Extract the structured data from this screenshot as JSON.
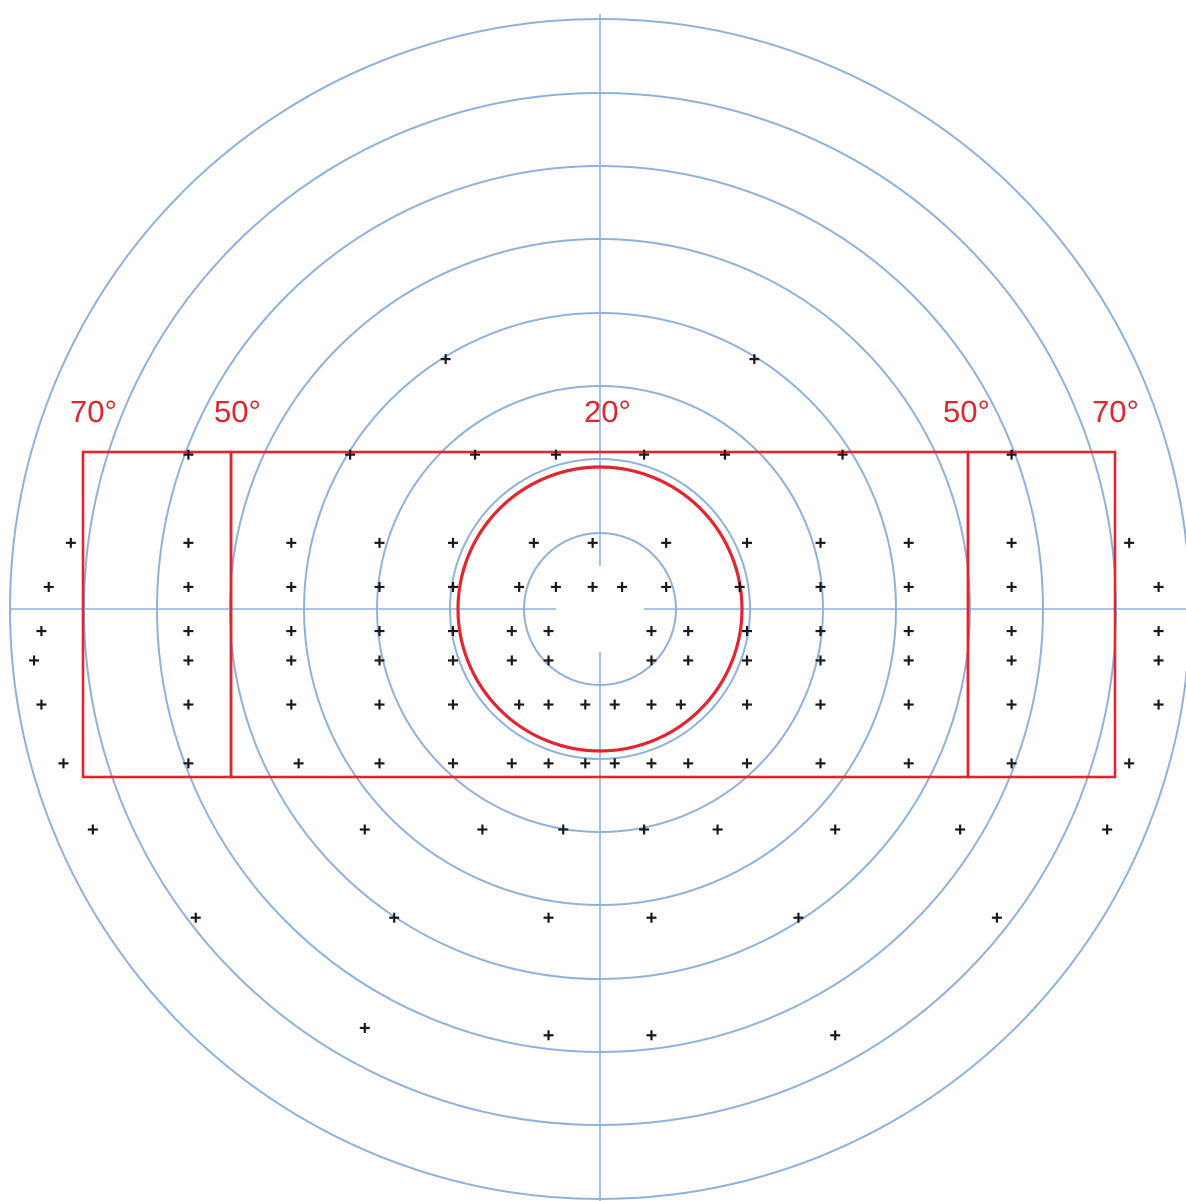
{
  "diagram": {
    "ring_step_degrees": 10,
    "ring_count": 8,
    "colors": {
      "grid": "#8fb2dc",
      "zones": "#e2252e",
      "points": "#1a1a1a"
    },
    "labels": [
      {
        "id": "left-outer",
        "text": "70°"
      },
      {
        "id": "left-inner",
        "text": "50°"
      },
      {
        "id": "center",
        "text": "20°"
      },
      {
        "id": "right-inner",
        "text": "50°"
      },
      {
        "id": "right-outer",
        "text": "70°"
      }
    ],
    "zones": {
      "central_circle_radius_deg": 20,
      "inner_box_half_width_deg": 50,
      "outer_box_half_width_deg": 70
    },
    "test_points": [
      [
        -21,
        34
      ],
      [
        21,
        34
      ],
      [
        -56,
        21
      ],
      [
        -34,
        21
      ],
      [
        -17,
        21
      ],
      [
        -6,
        21
      ],
      [
        6,
        21
      ],
      [
        17,
        21
      ],
      [
        33,
        21
      ],
      [
        56,
        21
      ],
      [
        -72,
        9
      ],
      [
        -56,
        9
      ],
      [
        -42,
        9
      ],
      [
        -30,
        9
      ],
      [
        -20,
        9
      ],
      [
        -9,
        9
      ],
      [
        -1,
        9
      ],
      [
        9,
        9
      ],
      [
        20,
        9
      ],
      [
        30,
        9
      ],
      [
        42,
        9
      ],
      [
        56,
        9
      ],
      [
        72,
        9
      ],
      [
        -75,
        3
      ],
      [
        -56,
        3
      ],
      [
        -42,
        3
      ],
      [
        -30,
        3
      ],
      [
        -20,
        3
      ],
      [
        -11,
        3
      ],
      [
        -6,
        3
      ],
      [
        -1,
        3
      ],
      [
        3,
        3
      ],
      [
        9,
        3
      ],
      [
        19,
        3
      ],
      [
        30,
        3
      ],
      [
        42,
        3
      ],
      [
        56,
        3
      ],
      [
        76,
        3
      ],
      [
        -76,
        -3
      ],
      [
        -56,
        -3
      ],
      [
        -42,
        -3
      ],
      [
        -30,
        -3
      ],
      [
        -20,
        -3
      ],
      [
        -12,
        -3
      ],
      [
        -7,
        -3
      ],
      [
        7,
        -3
      ],
      [
        12,
        -3
      ],
      [
        20,
        -3
      ],
      [
        30,
        -3
      ],
      [
        42,
        -3
      ],
      [
        56,
        -3
      ],
      [
        76,
        -3
      ],
      [
        -77,
        -7
      ],
      [
        -56,
        -7
      ],
      [
        -42,
        -7
      ],
      [
        -30,
        -7
      ],
      [
        -20,
        -7
      ],
      [
        -12,
        -7
      ],
      [
        -7,
        -7
      ],
      [
        7,
        -7
      ],
      [
        12,
        -7
      ],
      [
        20,
        -7
      ],
      [
        30,
        -7
      ],
      [
        42,
        -7
      ],
      [
        56,
        -7
      ],
      [
        76,
        -7
      ],
      [
        -76,
        -13
      ],
      [
        -56,
        -13
      ],
      [
        -42,
        -13
      ],
      [
        -30,
        -13
      ],
      [
        -20,
        -13
      ],
      [
        -11,
        -13
      ],
      [
        -7,
        -13
      ],
      [
        -2,
        -13
      ],
      [
        2,
        -13
      ],
      [
        7,
        -13
      ],
      [
        11,
        -13
      ],
      [
        20,
        -13
      ],
      [
        30,
        -13
      ],
      [
        42,
        -13
      ],
      [
        56,
        -13
      ],
      [
        76,
        -13
      ],
      [
        -73,
        -21
      ],
      [
        -56,
        -21
      ],
      [
        -41,
        -21
      ],
      [
        -30,
        -21
      ],
      [
        -20,
        -21
      ],
      [
        -12,
        -21
      ],
      [
        -7,
        -21
      ],
      [
        -2,
        -21
      ],
      [
        2,
        -21
      ],
      [
        7,
        -21
      ],
      [
        12,
        -21
      ],
      [
        20,
        -21
      ],
      [
        30,
        -21
      ],
      [
        42,
        -21
      ],
      [
        56,
        -21
      ],
      [
        72,
        -21
      ],
      [
        -69,
        -30
      ],
      [
        -32,
        -30
      ],
      [
        -16,
        -30
      ],
      [
        -5,
        -30
      ],
      [
        6,
        -30
      ],
      [
        16,
        -30
      ],
      [
        32,
        -30
      ],
      [
        49,
        -30
      ],
      [
        69,
        -30
      ],
      [
        -55,
        -42
      ],
      [
        -28,
        -42
      ],
      [
        -7,
        -42
      ],
      [
        7,
        -42
      ],
      [
        27,
        -42
      ],
      [
        54,
        -42
      ],
      [
        -32,
        -57
      ],
      [
        -7,
        -58
      ],
      [
        7,
        -58
      ],
      [
        32,
        -58
      ]
    ]
  }
}
